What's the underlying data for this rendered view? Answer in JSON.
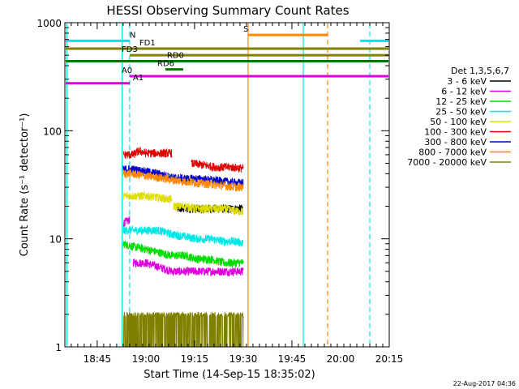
{
  "chart_data": {
    "type": "line",
    "title": "HESSI Observing Summary Count Rates",
    "xlabel": "Start Time (14-Sep-15 18:35:02)",
    "ylabel": "Count Rate (s⁻¹ detector⁻¹)",
    "y_scale": "log",
    "ylim": [
      1,
      1000
    ],
    "xlim": [
      "18:35:02",
      "20:15:00"
    ],
    "x_ticks": [
      "18:45",
      "19:00",
      "19:15",
      "19:30",
      "19:45",
      "20:00",
      "20:15"
    ],
    "y_ticks": [
      "1",
      "10",
      "100",
      "1000"
    ],
    "timestamp": "22-Aug-2017 04:36",
    "legend": {
      "placement": "right",
      "title": "Det 1,3,5,6,7",
      "entries": [
        {
          "label": "3 - 6 keV",
          "color": "#000000"
        },
        {
          "label": "6 - 12 keV",
          "color": "#dd00dd"
        },
        {
          "label": "12 - 25 keV",
          "color": "#00dd00"
        },
        {
          "label": "25 - 50 keV",
          "color": "#00e6e6"
        },
        {
          "label": "50 - 100 keV",
          "color": "#dddd00"
        },
        {
          "label": "100 - 300 keV",
          "color": "#e00000"
        },
        {
          "label": "300 - 800 keV",
          "color": "#0000cc"
        },
        {
          "label": "800 - 7000 keV",
          "color": "#ff8800"
        },
        {
          "label": "7000 - 20000 keV",
          "color": "#808000"
        }
      ]
    },
    "series": [
      {
        "name": "3 - 6 keV",
        "color": "#000000",
        "segments": [
          {
            "x": [
              "19:09:30",
              "19:14:00",
              "19:18:00",
              "19:22:00",
              "19:26:00",
              "19:30:00"
            ],
            "y": [
              19,
              19,
              19,
              19,
              19,
              19
            ]
          }
        ]
      },
      {
        "name": "6 - 12 keV",
        "color": "#dd00dd",
        "segments": [
          {
            "x": [
              "18:53:00",
              "18:55:00"
            ],
            "y": [
              14,
              15
            ]
          },
          {
            "x": [
              "18:56:00",
              "19:00:00",
              "19:04:00",
              "19:08:00",
              "19:12:00",
              "19:16:00",
              "19:20:00",
              "19:24:00",
              "19:28:00",
              "19:30:00"
            ],
            "y": [
              6,
              6,
              5.5,
              5,
              5,
              5,
              5,
              5,
              5,
              5
            ]
          }
        ]
      },
      {
        "name": "12 - 25 keV",
        "color": "#00dd00",
        "segments": [
          {
            "x": [
              "18:53:00",
              "18:56:00",
              "19:00:00",
              "19:04:00",
              "19:08:00",
              "19:12:00",
              "19:16:00",
              "19:20:00",
              "19:24:00",
              "19:28:00",
              "19:30:00"
            ],
            "y": [
              9,
              8.5,
              8,
              7.5,
              7,
              7,
              6.5,
              6.5,
              6,
              6,
              6
            ]
          }
        ]
      },
      {
        "name": "25 - 50 keV",
        "color": "#00e6e6",
        "segments": [
          {
            "x": [
              "18:53:00",
              "18:56:00",
              "19:00:00",
              "19:04:00",
              "19:08:00",
              "19:12:00",
              "19:16:00",
              "19:20:00",
              "19:24:00",
              "19:28:00",
              "19:30:00"
            ],
            "y": [
              12,
              12,
              12,
              12,
              11,
              10.5,
              10,
              10,
              9.5,
              9.5,
              9
            ]
          }
        ]
      },
      {
        "name": "50 - 100 keV",
        "color": "#dddd00",
        "segments": [
          {
            "x": [
              "18:53:00",
              "18:56:00",
              "19:00:00",
              "19:04:00",
              "19:08:00"
            ],
            "y": [
              25,
              25,
              25,
              24,
              23
            ]
          },
          {
            "x": [
              "19:08:30",
              "19:12:00",
              "19:16:00",
              "19:20:00",
              "19:24:00",
              "19:28:00",
              "19:30:00"
            ],
            "y": [
              20,
              20,
              19,
              19,
              19,
              18,
              18
            ]
          }
        ]
      },
      {
        "name": "100 - 300 keV",
        "color": "#e00000",
        "segments": [
          {
            "x": [
              "18:53:00",
              "18:56:00",
              "18:58:00",
              "19:00:00",
              "19:04:00",
              "19:08:00"
            ],
            "y": [
              60,
              60,
              65,
              62,
              62,
              62
            ]
          },
          {
            "x": [
              "19:14:00",
              "19:18:00",
              "19:22:00",
              "19:26:00",
              "19:30:00"
            ],
            "y": [
              50,
              48,
              46,
              46,
              45
            ]
          }
        ]
      },
      {
        "name": "300 - 800 keV",
        "color": "#0000cc",
        "segments": [
          {
            "x": [
              "18:53:00",
              "18:56:00",
              "19:00:00",
              "19:04:00",
              "19:08:00",
              "19:12:00",
              "19:16:00",
              "19:20:00",
              "19:24:00",
              "19:28:00",
              "19:30:00"
            ],
            "y": [
              44,
              44,
              42,
              40,
              37,
              36,
              36,
              35,
              34,
              33,
              33
            ]
          }
        ]
      },
      {
        "name": "800 - 7000 keV",
        "color": "#ff8800",
        "segments": [
          {
            "x": [
              "18:53:00",
              "18:56:00",
              "19:00:00",
              "19:04:00",
              "19:08:00",
              "19:12:00",
              "19:16:00",
              "19:20:00",
              "19:24:00",
              "19:28:00",
              "19:30:00"
            ],
            "y": [
              40,
              40,
              38,
              37,
              35,
              34,
              33,
              32,
              31,
              30,
              30
            ]
          }
        ]
      },
      {
        "name": "7000 - 20000 keV",
        "color": "#808000",
        "segments": [
          {
            "x": [
              "18:53:00",
              "18:56:00",
              "19:00:00",
              "19:04:00",
              "19:08:00",
              "19:12:00",
              "19:16:00",
              "19:20:00",
              "19:24:00",
              "19:28:00",
              "19:30:00"
            ],
            "y": [
              1.6,
              1.9,
              1.8,
              1.9,
              1.8,
              1.7,
              1.9,
              1.6,
              1.8,
              1.7,
              1.6
            ]
          }
        ]
      }
    ],
    "flag_bars": [
      {
        "label": "N",
        "color": "#00e6e6",
        "level": 680,
        "label_at": "18:55:00",
        "segments": [
          [
            "18:35:02",
            "18:55:00"
          ],
          [
            "20:06:00",
            "20:15:00"
          ]
        ]
      },
      {
        "label": "FD1",
        "color": "#808000",
        "level": 575,
        "label_at": "18:58:00",
        "segments": [
          [
            "18:35:02",
            "20:15:00"
          ]
        ]
      },
      {
        "label": "FD3",
        "color": "#808000",
        "level": 500,
        "label_at": "18:52:30",
        "segments": [
          [
            "18:55:00",
            "20:15:00"
          ]
        ]
      },
      {
        "label": "S",
        "color": "#ff8800",
        "level": 770,
        "label_at": "19:30:00",
        "segments": [
          [
            "19:31:30",
            "19:56:00"
          ]
        ]
      },
      {
        "label": "RD0",
        "color": "#007700",
        "level": 440,
        "label_at": "19:06:30",
        "segments": [
          [
            "18:35:02",
            "20:15:00"
          ]
        ]
      },
      {
        "label": "RD6",
        "color": "#007700",
        "level": 370,
        "label_at": "19:03:30",
        "segments": [
          [
            "19:06:00",
            "19:11:30"
          ]
        ]
      },
      {
        "label": "A0",
        "color": "#dd00dd",
        "level": 320,
        "label_at": "18:52:30",
        "segments": [
          [
            "18:55:00",
            "20:15:00"
          ]
        ]
      },
      {
        "label": "A1",
        "color": "#dd00dd",
        "level": 275,
        "label_at": "18:56:00",
        "segments": [
          [
            "18:35:02",
            "18:55:00"
          ]
        ]
      }
    ],
    "vertical_markers": [
      {
        "x": "18:35:40",
        "color": "#00e6e6",
        "style": "solid"
      },
      {
        "x": "18:52:40",
        "color": "#00e6e6",
        "style": "solid"
      },
      {
        "x": "18:55:00",
        "color": "#00e6e6",
        "style": "dashed"
      },
      {
        "x": "19:31:30",
        "color": "#ff8800",
        "style": "solid"
      },
      {
        "x": "19:48:30",
        "color": "#00e6e6",
        "style": "solid"
      },
      {
        "x": "19:56:00",
        "color": "#ff8800",
        "style": "dashed"
      },
      {
        "x": "20:09:00",
        "color": "#00e6e6",
        "style": "dashed"
      }
    ]
  }
}
